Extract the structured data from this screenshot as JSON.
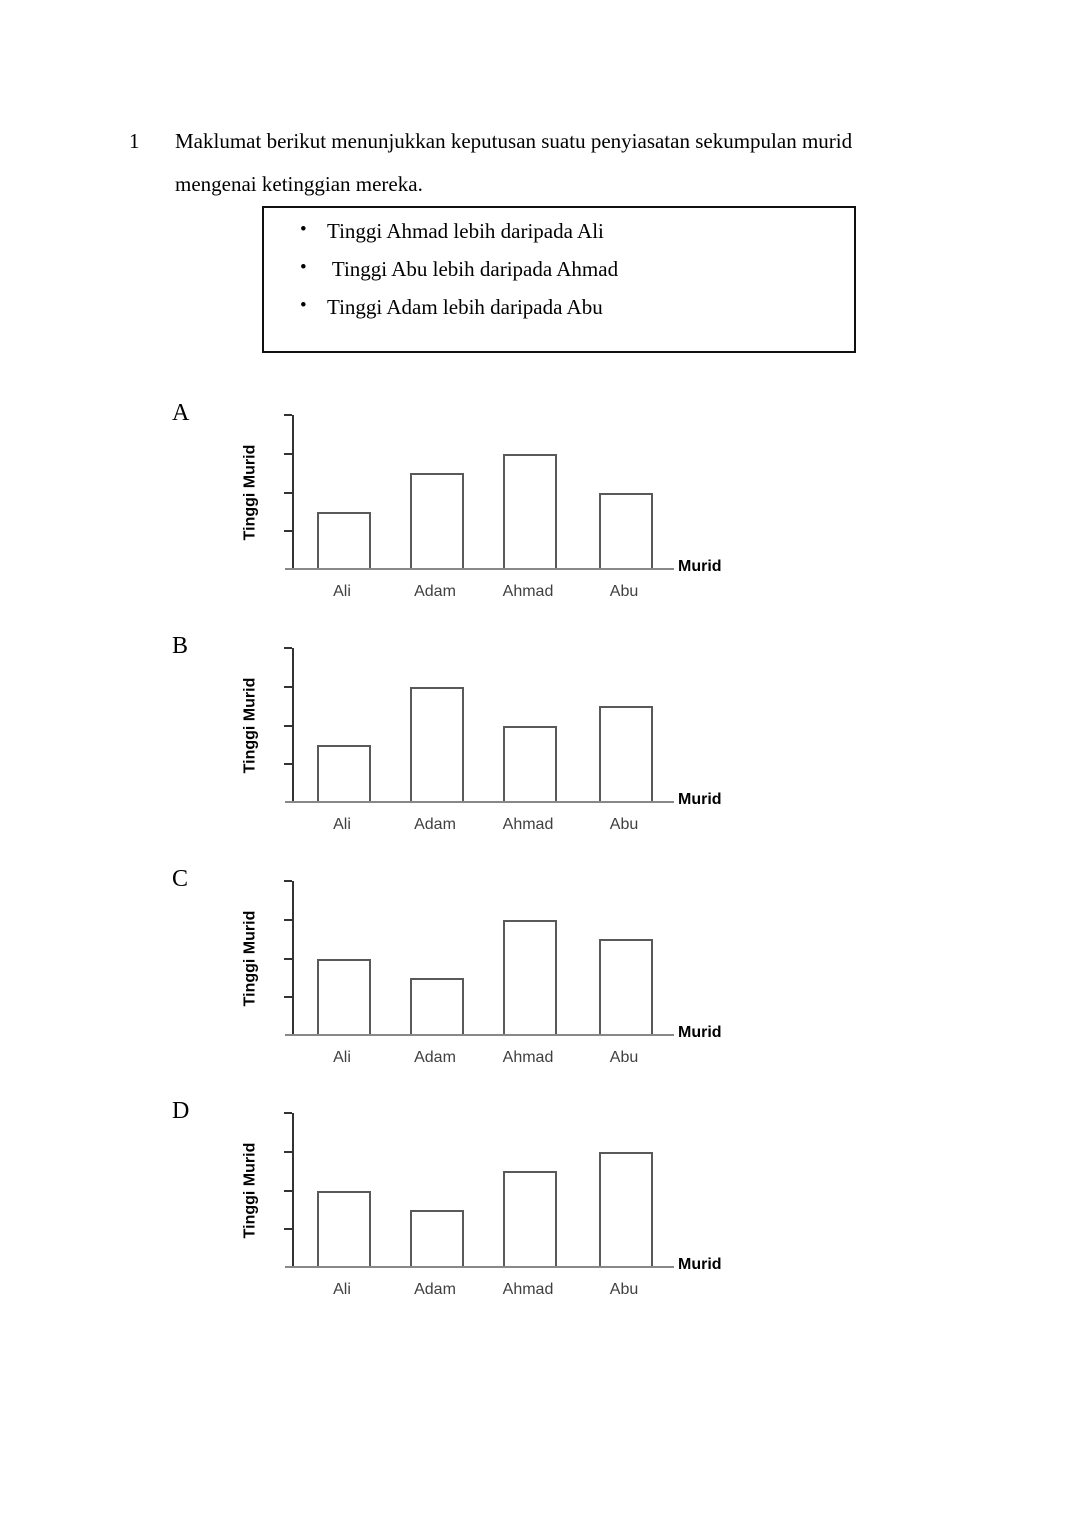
{
  "question": {
    "number": "1",
    "line1": "Maklumat berikut menunjukkan keputusan suatu penyiasatan sekumpulan murid",
    "line2": "mengenai ketinggian mereka."
  },
  "info_box": {
    "bullet_char": "•",
    "items": [
      "Tinggi Ahmad lebih daripada Ali",
      " Tinggi Abu lebih daripada Ahmad",
      "Tinggi Adam lebih daripada Abu"
    ]
  },
  "axis": {
    "ylabel": "Tinggi Murid",
    "xlabel": "Murid"
  },
  "categories": [
    "Ali",
    "Adam",
    "Ahmad",
    "Abu"
  ],
  "ymax": 4,
  "options": [
    {
      "letter": "A",
      "values": [
        1.5,
        2.5,
        3,
        2
      ]
    },
    {
      "letter": "B",
      "values": [
        1.5,
        3,
        2,
        2.5
      ]
    },
    {
      "letter": "C",
      "values": [
        2,
        1.5,
        3,
        2.5
      ]
    },
    {
      "letter": "D",
      "values": [
        2,
        1.5,
        2.5,
        3
      ]
    }
  ],
  "colors": {
    "background": "#ffffff",
    "text": "#000000",
    "bar_fill": "#ffffff",
    "bar_border": "#595959",
    "y_axis": "#333333",
    "x_axis": "#888888",
    "category_label": "#3f3f3f",
    "box_border": "#111111"
  },
  "chart_data": [
    {
      "type": "bar",
      "option": "A",
      "title": "",
      "xlabel": "Murid",
      "ylabel": "Tinggi Murid",
      "categories": [
        "Ali",
        "Adam",
        "Ahmad",
        "Abu"
      ],
      "values": [
        1.5,
        2.5,
        3,
        2
      ],
      "ylim": [
        0,
        4
      ],
      "grid": false,
      "yticks_labeled": false,
      "note": "bar heights in unlabeled y-axis tick units; white bars with gray outline"
    },
    {
      "type": "bar",
      "option": "B",
      "title": "",
      "xlabel": "Murid",
      "ylabel": "Tinggi Murid",
      "categories": [
        "Ali",
        "Adam",
        "Ahmad",
        "Abu"
      ],
      "values": [
        1.5,
        3,
        2,
        2.5
      ],
      "ylim": [
        0,
        4
      ],
      "grid": false,
      "yticks_labeled": false,
      "note": "bar heights in unlabeled y-axis tick units; white bars with gray outline"
    },
    {
      "type": "bar",
      "option": "C",
      "title": "",
      "xlabel": "Murid",
      "ylabel": "Tinggi Murid",
      "categories": [
        "Ali",
        "Adam",
        "Ahmad",
        "Abu"
      ],
      "values": [
        2,
        1.5,
        3,
        2.5
      ],
      "ylim": [
        0,
        4
      ],
      "grid": false,
      "yticks_labeled": false,
      "note": "bar heights in unlabeled y-axis tick units; white bars with gray outline"
    },
    {
      "type": "bar",
      "option": "D",
      "title": "",
      "xlabel": "Murid",
      "ylabel": "Tinggi Murid",
      "categories": [
        "Ali",
        "Adam",
        "Ahmad",
        "Abu"
      ],
      "values": [
        2,
        1.5,
        2.5,
        3
      ],
      "ylim": [
        0,
        4
      ],
      "grid": false,
      "yticks_labeled": false,
      "note": "bar heights in unlabeled y-axis tick units; white bars with gray outline"
    }
  ]
}
